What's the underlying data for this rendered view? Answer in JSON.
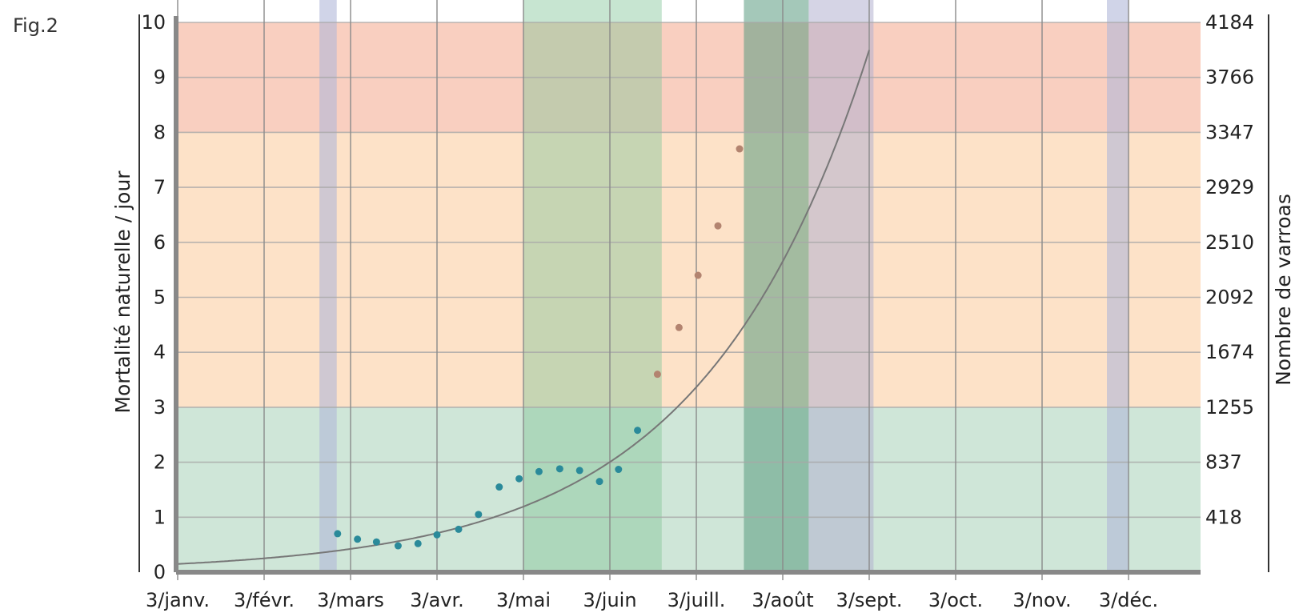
{
  "figure_label": "Fig.2",
  "chart_data": {
    "type": "scatter",
    "x_tick_labels": [
      "3/janv.",
      "3/févr.",
      "3/mars",
      "3/avr.",
      "3/mai",
      "3/juin",
      "3/juill.",
      "3/août",
      "3/sept.",
      "3/oct.",
      "3/nov.",
      "3/déc."
    ],
    "ylabel": "Mortalité naturelle / jour",
    "y2label": "Nombre de varroas",
    "ylim": [
      0,
      10
    ],
    "y_ticks": [
      0,
      1,
      2,
      3,
      4,
      5,
      6,
      7,
      8,
      9,
      10
    ],
    "y2_tick_labels": [
      "",
      "418",
      "837",
      "1255",
      "1674",
      "2092",
      "2510",
      "2929",
      "3347",
      "3766",
      "4184"
    ],
    "grid": true,
    "zones": [
      {
        "name": "green",
        "from": 0,
        "to": 3,
        "color": "#cfe6d8"
      },
      {
        "name": "orange",
        "from": 3,
        "to": 8,
        "color": "#fde2c8"
      },
      {
        "name": "red",
        "from": 8,
        "to": 10,
        "color": "#f9cfc0"
      }
    ],
    "bands": [
      {
        "from_month": 1.64,
        "to_month": 1.84,
        "color": "#b0b8d8",
        "opacity": 0.6
      },
      {
        "from_month": 4.0,
        "to_month": 5.6,
        "color": "#82c69a",
        "opacity": 0.45
      },
      {
        "from_month": 6.55,
        "to_month": 7.3,
        "color": "#5a9a80",
        "opacity": 0.55
      },
      {
        "from_month": 7.3,
        "to_month": 8.05,
        "color": "#b3b0d0",
        "opacity": 0.55
      },
      {
        "from_month": 10.75,
        "to_month": 11.0,
        "color": "#b0b8d8",
        "opacity": 0.6
      }
    ],
    "points": [
      {
        "x": 1.85,
        "y": 0.7
      },
      {
        "x": 2.08,
        "y": 0.6
      },
      {
        "x": 2.3,
        "y": 0.55
      },
      {
        "x": 2.55,
        "y": 0.48
      },
      {
        "x": 2.78,
        "y": 0.52
      },
      {
        "x": 3.0,
        "y": 0.68
      },
      {
        "x": 3.25,
        "y": 0.78
      },
      {
        "x": 3.48,
        "y": 1.05
      },
      {
        "x": 3.72,
        "y": 1.55
      },
      {
        "x": 3.95,
        "y": 1.7
      },
      {
        "x": 4.18,
        "y": 1.83
      },
      {
        "x": 4.42,
        "y": 1.88
      },
      {
        "x": 4.65,
        "y": 1.85
      },
      {
        "x": 4.88,
        "y": 1.65
      },
      {
        "x": 5.1,
        "y": 1.87
      },
      {
        "x": 5.32,
        "y": 2.58
      },
      {
        "x": 5.55,
        "y": 3.6
      },
      {
        "x": 5.8,
        "y": 4.45
      },
      {
        "x": 6.02,
        "y": 5.4
      },
      {
        "x": 6.25,
        "y": 6.3
      },
      {
        "x": 6.5,
        "y": 7.7
      }
    ],
    "trend_curve": {
      "type": "exponential",
      "a": 0.15,
      "b": 0.5185
    },
    "colors": {
      "points": "#2a8a9a",
      "curve": "#777777",
      "grid": "#999999",
      "axis": "#888888"
    }
  }
}
